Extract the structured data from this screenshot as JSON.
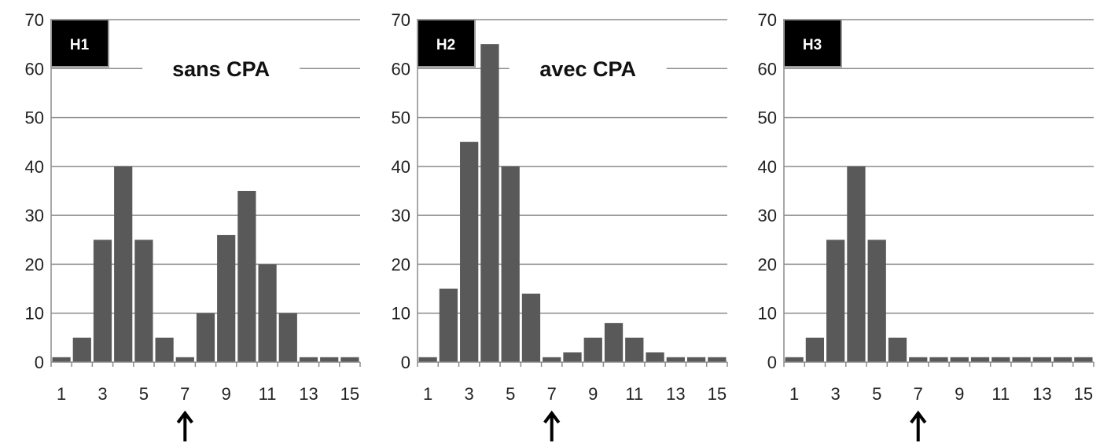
{
  "colors": {
    "bar": "#595959",
    "grid": "#8c8c8c",
    "tag_bg": "#000000",
    "arrow": "#000000"
  },
  "chart_data": [
    {
      "type": "bar",
      "panel_tag": "H1",
      "subtitle": "sans CPA",
      "categories": [
        1,
        2,
        3,
        4,
        5,
        6,
        7,
        8,
        9,
        10,
        11,
        12,
        13,
        14,
        15
      ],
      "tick_labels": [
        "1",
        "3",
        "5",
        "7",
        "9",
        "11",
        "13",
        "15"
      ],
      "values": [
        1,
        5,
        25,
        40,
        25,
        5,
        1,
        10,
        26,
        35,
        20,
        10,
        1,
        1,
        1
      ],
      "ylim": [
        0,
        70
      ],
      "yticks": [
        "0",
        "10",
        "20",
        "30",
        "40",
        "50",
        "60",
        "70"
      ],
      "grid": true,
      "arrow_at": 7
    },
    {
      "type": "bar",
      "panel_tag": "H2",
      "subtitle": "avec CPA",
      "categories": [
        1,
        2,
        3,
        4,
        5,
        6,
        7,
        8,
        9,
        10,
        11,
        12,
        13,
        14,
        15
      ],
      "tick_labels": [
        "1",
        "3",
        "5",
        "7",
        "9",
        "11",
        "13",
        "15"
      ],
      "values": [
        1,
        15,
        45,
        65,
        40,
        14,
        1,
        2,
        5,
        8,
        5,
        2,
        1,
        1,
        1
      ],
      "ylim": [
        0,
        70
      ],
      "yticks": [
        "0",
        "10",
        "20",
        "30",
        "40",
        "50",
        "60",
        "70"
      ],
      "grid": true,
      "arrow_at": 7
    },
    {
      "type": "bar",
      "panel_tag": "H3",
      "subtitle": "",
      "categories": [
        1,
        2,
        3,
        4,
        5,
        6,
        7,
        8,
        9,
        10,
        11,
        12,
        13,
        14,
        15
      ],
      "tick_labels": [
        "1",
        "3",
        "5",
        "7",
        "9",
        "11",
        "13",
        "15"
      ],
      "values": [
        1,
        5,
        25,
        40,
        25,
        5,
        1,
        1,
        1,
        1,
        1,
        1,
        1,
        1,
        1
      ],
      "ylim": [
        0,
        70
      ],
      "yticks": [
        "0",
        "10",
        "20",
        "30",
        "40",
        "50",
        "60",
        "70"
      ],
      "grid": true,
      "arrow_at": 7
    }
  ]
}
